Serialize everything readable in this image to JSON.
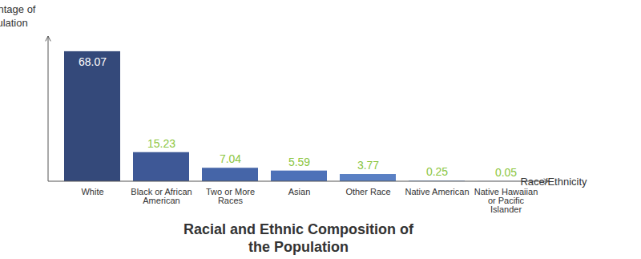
{
  "chart_data": {
    "type": "bar",
    "title": "Racial and Ethnic Composition of the Population",
    "x_label": "Race/Ethnicity",
    "y_label": "Percentage of Population",
    "categories": [
      "White",
      "Black or African American",
      "Two or More Races",
      "Asian",
      "Other Race",
      "Native American",
      "Native Hawaiian or Pacific Islander"
    ],
    "values": [
      68.07,
      15.23,
      7.04,
      5.59,
      3.77,
      0.25,
      0.05
    ],
    "colors": [
      "#34497a",
      "#3e5896",
      "#4565a8",
      "#4d71b8",
      "#5a80c4",
      "#6790d0",
      "#73a0da"
    ],
    "ylim": [
      0,
      76
    ],
    "yticks": [],
    "grid": false,
    "data_labels": true,
    "tick_labels": "x"
  }
}
